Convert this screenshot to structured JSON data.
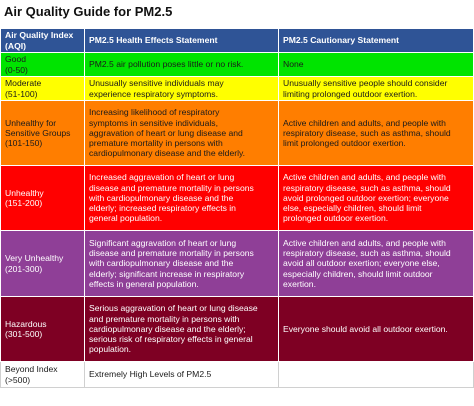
{
  "title": "Air Quality Guide for PM2.5",
  "header": {
    "col1": [
      "Air Quality Index",
      "(AQI)"
    ],
    "col2": [
      "PM2.5 Health Effects Statement"
    ],
    "col3": [
      "PM2.5 Cautionary Statement"
    ]
  },
  "rows": [
    {
      "category": [
        "Good",
        "(0-50)"
      ],
      "health": [
        "PM2.5 air pollution poses little or no risk."
      ],
      "cautionary": [
        "None"
      ]
    },
    {
      "category": [
        "Moderate",
        "(51-100)"
      ],
      "health": [
        "Unusually sensitive individuals may",
        "experience respiratory symptoms."
      ],
      "cautionary": [
        "Unusually sensitive people should consider",
        "limiting prolonged outdoor exertion."
      ]
    },
    {
      "category": [
        "Unhealthy for",
        "Sensitive Groups",
        "(101-150)"
      ],
      "health": [
        "Increasing likelihood of respiratory",
        "symptoms in sensitive individuals,",
        "aggravation of heart or lung disease and",
        "premature mortality in persons with",
        "cardiopulmonary disease and the elderly."
      ],
      "cautionary": [
        "Active children and adults, and people with",
        "respiratory disease, such as asthma, should",
        "limit prolonged outdoor exertion."
      ]
    },
    {
      "category": [
        "Unhealthy",
        "(151-200)"
      ],
      "health": [
        "Increased aggravation of heart or lung",
        "disease and premature mortality in persons",
        "with cardiopulmonary disease and the",
        "elderly; increased respiratory effects in",
        "general population."
      ],
      "cautionary": [
        "Active children and adults, and people with",
        "respiratory disease, such as asthma, should",
        "avoid prolonged outdoor exertion; everyone",
        "else, especially children, should limit",
        "prolonged outdoor exertion."
      ]
    },
    {
      "category": [
        "Very Unhealthy",
        "(201-300)"
      ],
      "health": [
        "Significant aggravation of heart or lung",
        "disease and premature mortality in persons",
        "with cardiopulmonary disease and the",
        "elderly; significant increase in respiratory",
        "effects in general population."
      ],
      "cautionary": [
        "Active children and adults, and people with",
        "respiratory disease, such as asthma, should",
        "avoid all outdoor exertion; everyone else,",
        "especially children, should limit outdoor",
        "exertion."
      ]
    },
    {
      "category": [
        "Hazardous",
        "(301-500)"
      ],
      "health": [
        "Serious aggravation of heart or lung disease",
        "and premature mortality in persons with",
        "cardiopulmonary disease and the elderly;",
        "serious risk of respiratory effects in general",
        "population."
      ],
      "cautionary": [
        "Everyone should avoid all outdoor exertion."
      ]
    },
    {
      "category": [
        "Beyond Index",
        "(>500)"
      ],
      "health": [
        "Extremely High Levels of PM2.5"
      ],
      "cautionary": []
    }
  ],
  "colors": {
    "header_bg": "#2f5496",
    "good": "#00e400",
    "moderate": "#ffff00",
    "unhealthy_sensitive": "#ff7e00",
    "unhealthy": "#ff0000",
    "very_unhealthy": "#8f3f97",
    "hazardous": "#7e0023",
    "beyond_index": "#ffffff"
  }
}
